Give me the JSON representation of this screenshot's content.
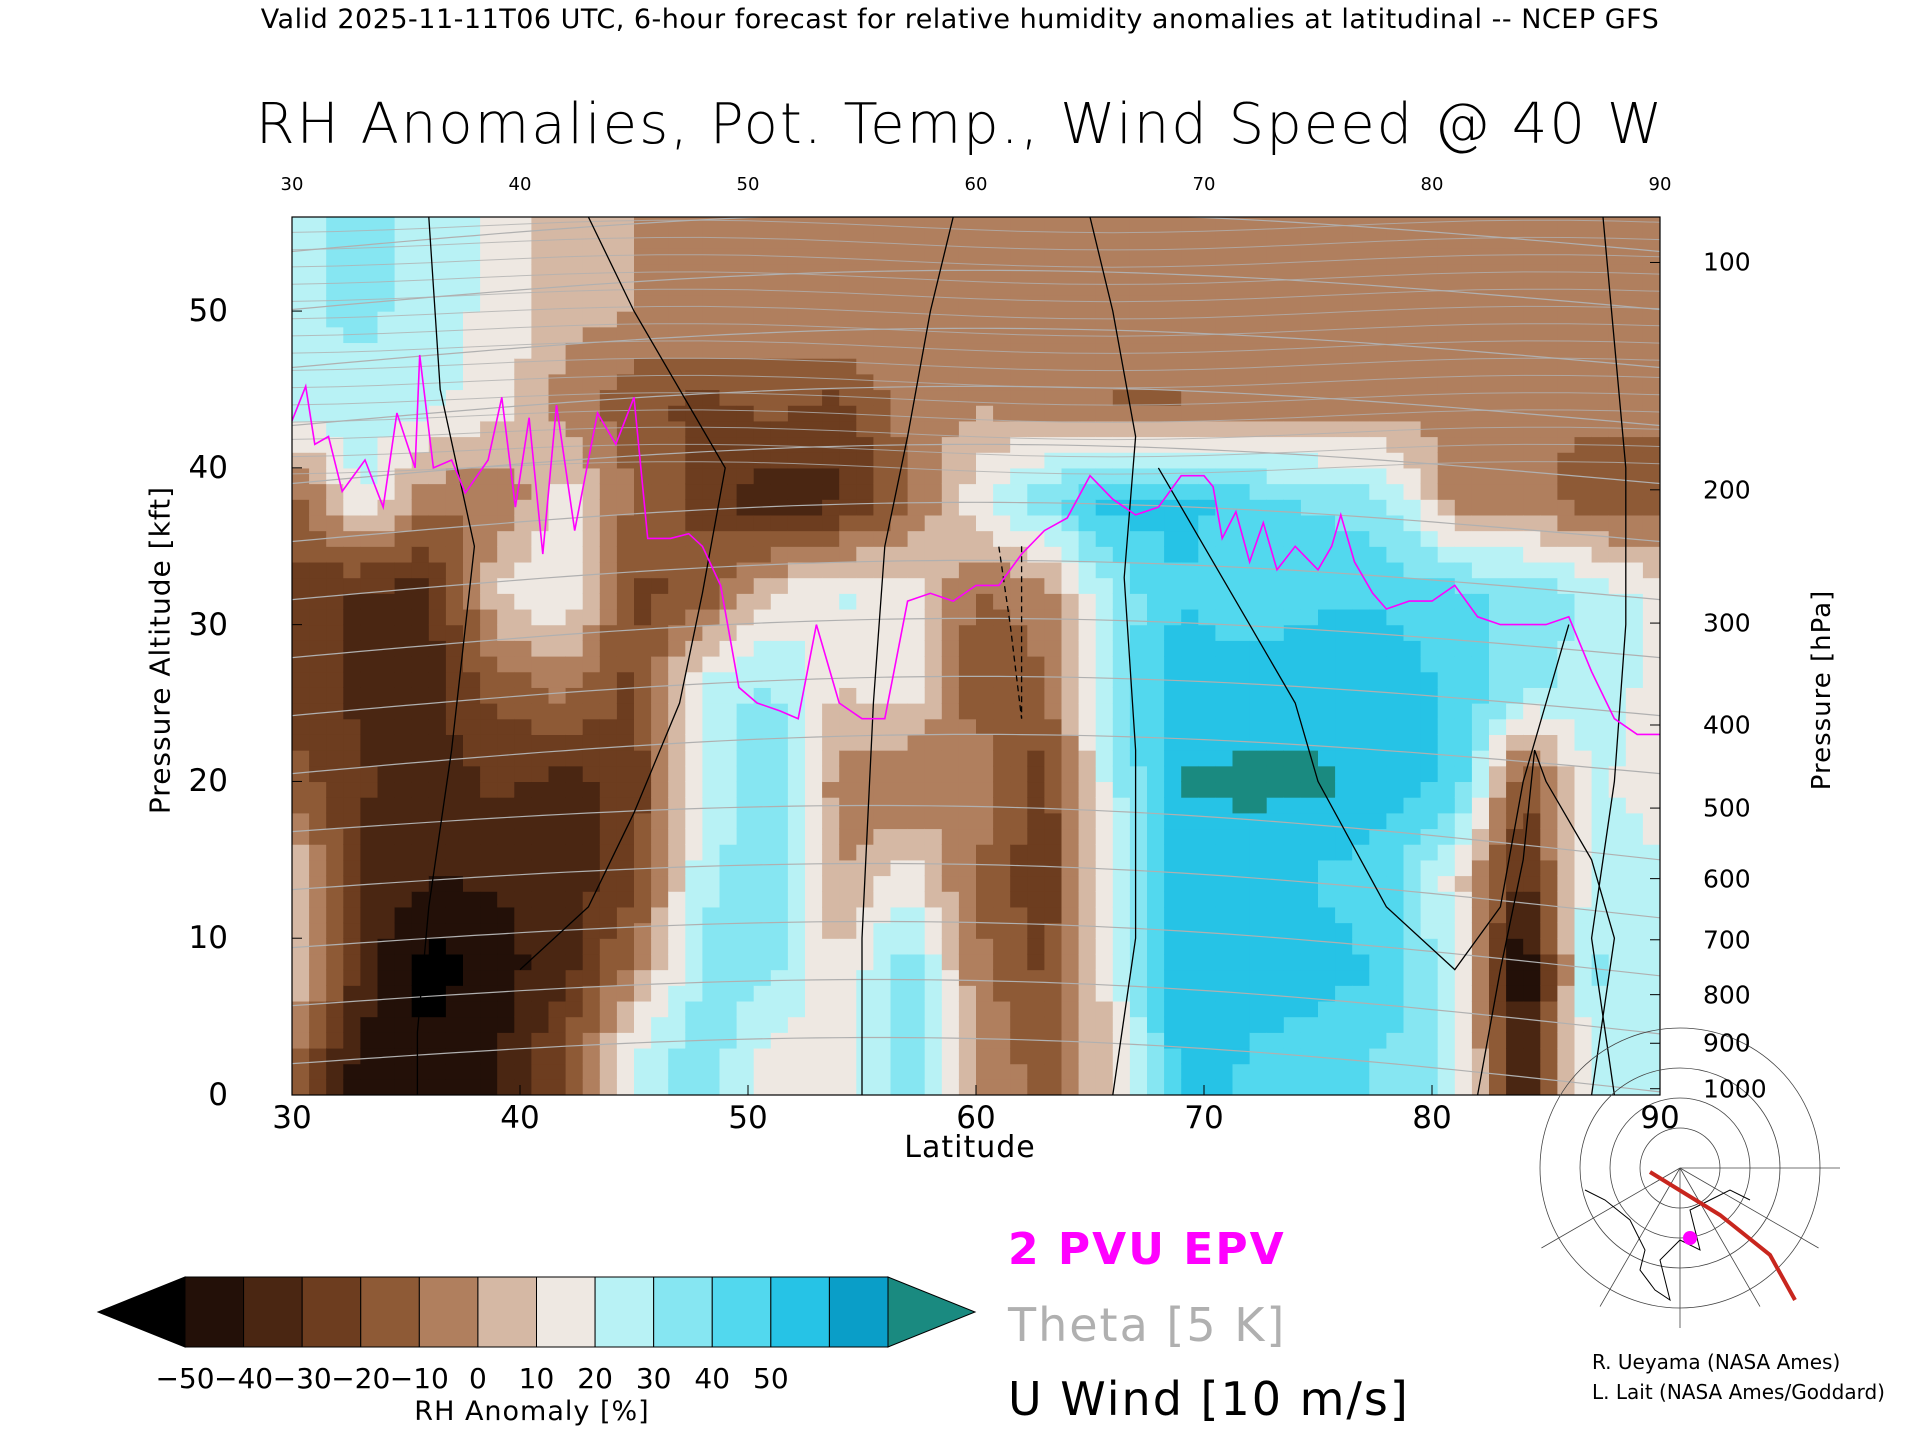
{
  "header": "Valid 2025-11-11T06 UTC, 6-hour forecast for relative humidity anomalies at latitudinal -- NCEP GFS",
  "title": "RH Anomalies, Pot. Temp., Wind Speed @ 40 W",
  "chart_data": {
    "type": "heatmap",
    "title": "RH Anomalies, Pot. Temp., Wind Speed @ 40 W",
    "xlabel": "Latitude",
    "ylabel": "Pressure Altitude [kft]",
    "y2label": "Pressure [hPa]",
    "xlim": [
      30,
      90
    ],
    "ylim": [
      0,
      56
    ],
    "x_ticks": [
      30,
      40,
      50,
      60,
      70,
      80,
      90
    ],
    "y_ticks": [
      0,
      10,
      20,
      30,
      40,
      50
    ],
    "pressure_ticks": [
      {
        "label": "100",
        "kft": 53.1
      },
      {
        "label": "200",
        "kft": 38.6
      },
      {
        "label": "300",
        "kft": 30.1
      },
      {
        "label": "400",
        "kft": 23.6
      },
      {
        "label": "500",
        "kft": 18.3
      },
      {
        "label": "600",
        "kft": 13.8
      },
      {
        "label": "700",
        "kft": 9.9
      },
      {
        "label": "800",
        "kft": 6.4
      },
      {
        "label": "900",
        "kft": 3.3
      },
      {
        "label": "1000",
        "kft": 0.4
      }
    ],
    "colorbar": {
      "label": "RH Anomaly [%]",
      "ticks": [
        "−50",
        "−40",
        "−30",
        "−20",
        "−10",
        "0",
        "10",
        "20",
        "30",
        "40",
        "50"
      ],
      "colors": [
        "#231008",
        "#4a2612",
        "#6d3d1f",
        "#8e5a36",
        "#b07f5e",
        "#d5b8a4",
        "#eee8e2",
        "#b8f2f5",
        "#86e6f2",
        "#52d8ee",
        "#26c3e6",
        "#0a9ec8"
      ],
      "under_color": "#000000",
      "over_color": "#1a8a80"
    },
    "rh_anomaly_grid": {
      "x": [
        30,
        33,
        36,
        39,
        42,
        45,
        48,
        51,
        54,
        57,
        60,
        63,
        66,
        69,
        72,
        75,
        78,
        81,
        84,
        87,
        90
      ],
      "y": [
        2,
        8,
        14,
        20,
        26,
        32,
        38,
        44,
        50
      ],
      "values": [
        [
          -15,
          -45,
          -48,
          -42,
          -20,
          18,
          30,
          10,
          8,
          30,
          -5,
          -18,
          5,
          45,
          40,
          35,
          30,
          20,
          -40,
          20,
          15
        ],
        [
          10,
          -35,
          -55,
          -45,
          -35,
          -10,
          25,
          25,
          5,
          30,
          -10,
          -25,
          10,
          50,
          45,
          45,
          40,
          15,
          -55,
          25,
          15
        ],
        [
          10,
          -35,
          -40,
          -40,
          -38,
          -25,
          20,
          30,
          -5,
          10,
          -15,
          -30,
          15,
          48,
          45,
          40,
          35,
          10,
          -35,
          20,
          15
        ],
        [
          -20,
          -30,
          -38,
          -30,
          -35,
          -30,
          15,
          30,
          -10,
          -15,
          -5,
          -28,
          20,
          50,
          52,
          52,
          45,
          40,
          -25,
          15,
          10
        ],
        [
          -25,
          -35,
          -35,
          -20,
          -10,
          -25,
          18,
          25,
          5,
          10,
          -20,
          -15,
          25,
          48,
          45,
          45,
          45,
          40,
          25,
          20,
          10
        ],
        [
          -25,
          -35,
          -35,
          5,
          15,
          -25,
          -20,
          5,
          15,
          10,
          -15,
          -10,
          25,
          40,
          35,
          40,
          40,
          35,
          30,
          20,
          10
        ],
        [
          -20,
          15,
          -10,
          -15,
          10,
          -15,
          -25,
          -40,
          -35,
          -15,
          10,
          30,
          45,
          45,
          35,
          30,
          25,
          -10,
          -10,
          -20,
          -20
        ],
        [
          20,
          20,
          15,
          10,
          -10,
          -20,
          -25,
          -20,
          -25,
          -10,
          -5,
          -10,
          -15,
          -15,
          -10,
          -10,
          -10,
          -10,
          -10,
          -10,
          -10
        ],
        [
          20,
          25,
          20,
          10,
          0,
          -5,
          -5,
          -5,
          -5,
          -5,
          -5,
          -5,
          -5,
          -5,
          -5,
          -5,
          -5,
          -5,
          -5,
          -5,
          -5
        ]
      ]
    },
    "theta_contours_K": [
      280,
      290,
      300,
      310,
      320,
      330,
      340,
      350,
      360,
      370,
      380,
      390,
      400,
      410,
      420
    ],
    "epv_2pvu": {
      "x": [
        30,
        30.6,
        31,
        31.6,
        32.2,
        33.2,
        34,
        34.6,
        35.4,
        35.6,
        36.2,
        37,
        37.6,
        38.6,
        39.2,
        39.8,
        40.4,
        41,
        41.6,
        42.4,
        43.4,
        44.2,
        45,
        45.6,
        46.6,
        47.4,
        48,
        48.8,
        49.6,
        50.4,
        51.4,
        52.2,
        53,
        54,
        55,
        56,
        57,
        58,
        59,
        60,
        61,
        62,
        63,
        64,
        65,
        66,
        67,
        68,
        69,
        70,
        70.4,
        70.8,
        71.4,
        72,
        72.6,
        73.2,
        74,
        75,
        75.6,
        76,
        76.6,
        77.4,
        78,
        79,
        80,
        81,
        82,
        83,
        84,
        85,
        86,
        87,
        88,
        89,
        90
      ],
      "y": [
        43,
        45.2,
        41.5,
        42,
        38.5,
        40.5,
        37.5,
        43.5,
        40,
        47.2,
        40,
        40.5,
        38.4,
        40.5,
        44.5,
        37.5,
        43.2,
        34.5,
        44,
        36,
        43.5,
        41.5,
        44.5,
        35.5,
        35.5,
        35.8,
        35,
        32.5,
        26,
        25,
        24.5,
        24,
        30,
        25,
        24,
        24,
        31.5,
        32,
        31.5,
        32.5,
        32.5,
        34.5,
        36,
        36.8,
        39.5,
        38,
        37,
        37.5,
        39.5,
        39.5,
        38.8,
        35.5,
        37.2,
        34,
        36.5,
        33.5,
        35,
        33.5,
        35,
        37,
        34,
        32,
        31,
        31.5,
        31.5,
        32.5,
        30.5,
        30,
        30,
        30,
        30.5,
        27,
        24,
        23,
        23
      ]
    },
    "u_wind_contours_ms": [
      -10,
      0,
      10,
      20,
      30
    ]
  },
  "legend": {
    "epv": "2 PVU EPV",
    "theta": "Theta [5 K]",
    "wind": "U Wind [10 m/s]"
  },
  "colors": {
    "epv": "#ff00ff",
    "theta": "#b0b0b0",
    "wind": "#000000",
    "route": "#c8261e"
  },
  "credits": [
    "R. Ueyama (NASA Ames)",
    "L. Lait (NASA Ames/Goddard)"
  ]
}
